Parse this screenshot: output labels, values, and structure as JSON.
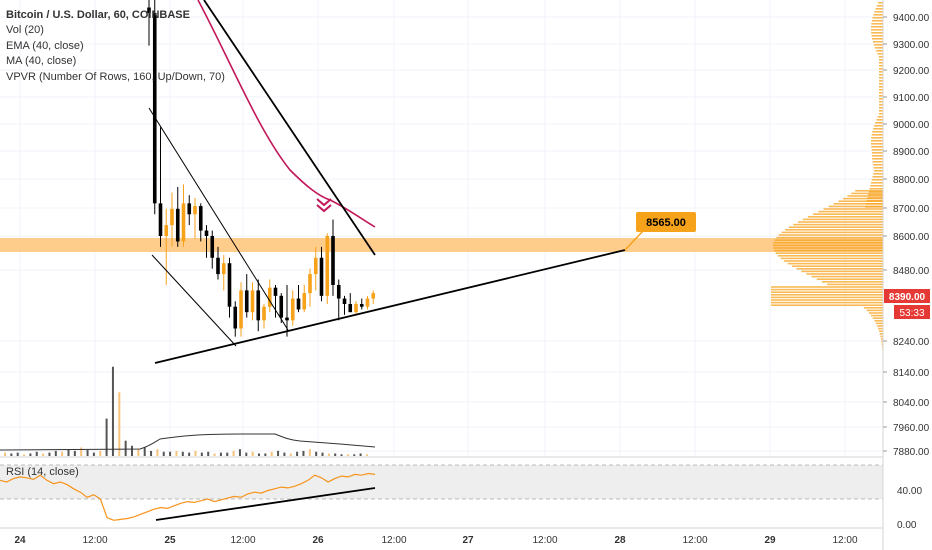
{
  "chart_data": {
    "type": "candlestick",
    "title": "Bitcoin / U.S. Dollar, 60, COINBASE",
    "indicators": [
      "Vol (20)",
      "EMA (40, close)",
      "MA (40, close)",
      "VPVR (Number Of Rows, 160, Up/Down, 70)"
    ],
    "price_axis": {
      "labels": [
        "9400.00",
        "9300.00",
        "9200.00",
        "9100.00",
        "9000.00",
        "8900.00",
        "8800.00",
        "8700.00",
        "8600.00",
        "8480.00",
        "8240.00",
        "8140.00",
        "8040.00",
        "7960.00",
        "7880.00"
      ]
    },
    "time_axis": {
      "labels": [
        "24",
        "12:00",
        "25",
        "12:00",
        "26",
        "12:00",
        "27",
        "12:00",
        "28",
        "12:00",
        "29",
        "12:00"
      ]
    },
    "callout": {
      "value": "8565.00"
    },
    "last_price": {
      "value": "8390.00",
      "countdown": "53:33"
    },
    "rsi": {
      "title": "RSI (14, close)",
      "axis_labels": [
        "40.00",
        "0.00"
      ],
      "band": [
        30,
        70
      ]
    },
    "candles": [
      {
        "o": 9440,
        "h": 9480,
        "l": 9300,
        "c": 9420
      },
      {
        "o": 9420,
        "h": 9470,
        "l": 8680,
        "c": 8720
      },
      {
        "o": 8720,
        "h": 9000,
        "l": 8560,
        "c": 8600
      },
      {
        "o": 8600,
        "h": 8700,
        "l": 8420,
        "c": 8640
      },
      {
        "o": 8640,
        "h": 8760,
        "l": 8560,
        "c": 8700
      },
      {
        "o": 8700,
        "h": 8780,
        "l": 8560,
        "c": 8580
      },
      {
        "o": 8580,
        "h": 8790,
        "l": 8560,
        "c": 8720
      },
      {
        "o": 8720,
        "h": 8750,
        "l": 8640,
        "c": 8680
      },
      {
        "o": 8680,
        "h": 8740,
        "l": 8590,
        "c": 8710
      },
      {
        "o": 8710,
        "h": 8720,
        "l": 8580,
        "c": 8620
      },
      {
        "o": 8620,
        "h": 8640,
        "l": 8520,
        "c": 8600
      },
      {
        "o": 8600,
        "h": 8620,
        "l": 8480,
        "c": 8520
      },
      {
        "o": 8520,
        "h": 8560,
        "l": 8440,
        "c": 8460
      },
      {
        "o": 8460,
        "h": 8530,
        "l": 8400,
        "c": 8500
      },
      {
        "o": 8500,
        "h": 8520,
        "l": 8300,
        "c": 8340
      },
      {
        "o": 8340,
        "h": 8360,
        "l": 8230,
        "c": 8260
      },
      {
        "o": 8260,
        "h": 8430,
        "l": 8230,
        "c": 8400
      },
      {
        "o": 8400,
        "h": 8460,
        "l": 8300,
        "c": 8320
      },
      {
        "o": 8320,
        "h": 8430,
        "l": 8290,
        "c": 8400
      },
      {
        "o": 8400,
        "h": 8440,
        "l": 8250,
        "c": 8290
      },
      {
        "o": 8290,
        "h": 8350,
        "l": 8260,
        "c": 8340
      },
      {
        "o": 8340,
        "h": 8440,
        "l": 8320,
        "c": 8410
      },
      {
        "o": 8410,
        "h": 8420,
        "l": 8300,
        "c": 8380
      },
      {
        "o": 8380,
        "h": 8390,
        "l": 8280,
        "c": 8300
      },
      {
        "o": 8300,
        "h": 8420,
        "l": 8230,
        "c": 8290
      },
      {
        "o": 8290,
        "h": 8400,
        "l": 8270,
        "c": 8370
      },
      {
        "o": 8370,
        "h": 8420,
        "l": 8320,
        "c": 8330
      },
      {
        "o": 8330,
        "h": 8420,
        "l": 8320,
        "c": 8390
      },
      {
        "o": 8390,
        "h": 8480,
        "l": 8340,
        "c": 8460
      },
      {
        "o": 8460,
        "h": 8560,
        "l": 8400,
        "c": 8520
      },
      {
        "o": 8520,
        "h": 8560,
        "l": 8360,
        "c": 8380
      },
      {
        "o": 8380,
        "h": 8610,
        "l": 8350,
        "c": 8600
      },
      {
        "o": 8600,
        "h": 8660,
        "l": 8380,
        "c": 8420
      },
      {
        "o": 8420,
        "h": 8440,
        "l": 8290,
        "c": 8370
      },
      {
        "o": 8370,
        "h": 8380,
        "l": 8310,
        "c": 8350
      },
      {
        "o": 8350,
        "h": 8390,
        "l": 8320,
        "c": 8320
      },
      {
        "o": 8320,
        "h": 8360,
        "l": 8310,
        "c": 8350
      },
      {
        "o": 8350,
        "h": 8370,
        "l": 8330,
        "c": 8340
      },
      {
        "o": 8340,
        "h": 8380,
        "l": 8330,
        "c": 8370
      },
      {
        "o": 8370,
        "h": 8400,
        "l": 8350,
        "c": 8390
      }
    ],
    "volume": [
      4,
      3,
      4,
      2,
      3,
      5,
      3,
      4,
      6,
      5,
      8,
      6,
      10,
      7,
      4,
      6,
      44,
      105,
      75,
      18,
      12,
      8,
      10,
      6,
      8,
      5,
      5,
      6,
      5,
      4,
      6,
      4,
      5,
      3,
      4,
      4,
      6,
      8,
      4,
      5,
      3,
      3,
      5,
      6,
      4,
      3,
      5,
      6,
      8,
      5,
      4,
      3,
      3,
      2,
      2,
      2,
      3,
      2
    ],
    "rsi_values": [
      52,
      50,
      54,
      56,
      55,
      53,
      58,
      52,
      48,
      50,
      47,
      42,
      38,
      32,
      35,
      30,
      8,
      5,
      6,
      7,
      9,
      12,
      15,
      18,
      20,
      19,
      22,
      25,
      27,
      26,
      28,
      30,
      27,
      29,
      31,
      33,
      32,
      36,
      38,
      37,
      40,
      42,
      44,
      43,
      45,
      48,
      52,
      58,
      55,
      50,
      54,
      57,
      56,
      59,
      58,
      60,
      59
    ]
  }
}
